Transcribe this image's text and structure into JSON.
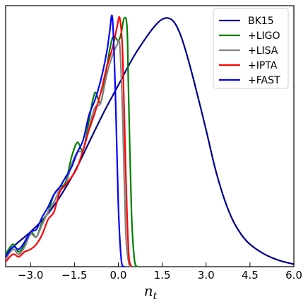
{
  "chart_data": {
    "type": "line",
    "title": "",
    "xlabel": "n",
    "xlabel_sub": "t",
    "ylabel": "",
    "xlim": [
      -3.85,
      6.0
    ],
    "ylim": [
      0,
      1.05
    ],
    "xticks": [
      -3.0,
      -1.5,
      0.0,
      1.5,
      3.0,
      4.5,
      6.0
    ],
    "xtick_labels": [
      "−3.0",
      "−1.5",
      "0.0",
      "1.5",
      "3.0",
      "4.5",
      "6.0"
    ],
    "yticks_visible": false,
    "grid": false,
    "legend_position": "top-right",
    "series": [
      {
        "name": "BK15",
        "color": "#00008b",
        "x": [
          -3.85,
          -3.5,
          -3.0,
          -2.5,
          -2.0,
          -1.5,
          -1.0,
          -0.5,
          0.0,
          0.5,
          1.0,
          1.3,
          1.5,
          1.7,
          1.9,
          2.1,
          2.3,
          2.6,
          3.0,
          3.3,
          3.6,
          3.9,
          4.2,
          4.5,
          5.0,
          5.5,
          6.0
        ],
        "y": [
          0.05,
          0.09,
          0.14,
          0.2,
          0.28,
          0.38,
          0.5,
          0.62,
          0.73,
          0.84,
          0.93,
          0.975,
          0.995,
          1.0,
          0.985,
          0.94,
          0.87,
          0.74,
          0.55,
          0.4,
          0.28,
          0.19,
          0.13,
          0.09,
          0.05,
          0.025,
          0.01
        ]
      },
      {
        "name": "+LIGO",
        "color": "#008000",
        "x": [
          -3.85,
          -3.6,
          -3.4,
          -3.2,
          -3.0,
          -2.8,
          -2.6,
          -2.4,
          -2.2,
          -2.0,
          -1.8,
          -1.6,
          -1.4,
          -1.2,
          -1.0,
          -0.8,
          -0.6,
          -0.4,
          -0.2,
          0.0,
          0.1,
          0.2,
          0.3,
          0.35,
          0.45,
          0.55,
          0.65
        ],
        "y": [
          0.05,
          0.09,
          0.06,
          0.09,
          0.14,
          0.12,
          0.18,
          0.22,
          0.29,
          0.32,
          0.34,
          0.44,
          0.5,
          0.47,
          0.59,
          0.7,
          0.66,
          0.8,
          0.92,
          0.91,
          0.94,
          1.0,
          0.96,
          0.7,
          0.22,
          0.03,
          0.0
        ]
      },
      {
        "name": "+LISA",
        "color": "#808080",
        "x": [
          -3.85,
          -3.6,
          -3.4,
          -3.2,
          -3.0,
          -2.8,
          -2.6,
          -2.4,
          -2.2,
          -2.0,
          -1.8,
          -1.6,
          -1.4,
          -1.2,
          -1.0,
          -0.8,
          -0.6,
          -0.4,
          -0.2,
          -0.05,
          0.05,
          0.15,
          0.25,
          0.35,
          0.45
        ],
        "y": [
          0.03,
          0.07,
          0.05,
          0.08,
          0.13,
          0.12,
          0.17,
          0.22,
          0.26,
          0.31,
          0.33,
          0.41,
          0.46,
          0.47,
          0.56,
          0.64,
          0.66,
          0.77,
          0.85,
          0.89,
          0.89,
          0.6,
          0.15,
          0.02,
          0.0
        ]
      },
      {
        "name": "+IPTA",
        "color": "#ff0000",
        "x": [
          -3.85,
          -3.6,
          -3.4,
          -3.2,
          -3.0,
          -2.8,
          -2.6,
          -2.4,
          -2.2,
          -2.0,
          -1.8,
          -1.6,
          -1.4,
          -1.2,
          -1.0,
          -0.8,
          -0.6,
          -0.4,
          -0.2,
          -0.05,
          0.05,
          0.15,
          0.25,
          0.35,
          0.45
        ],
        "y": [
          0.02,
          0.05,
          0.04,
          0.06,
          0.07,
          0.09,
          0.13,
          0.19,
          0.22,
          0.3,
          0.33,
          0.36,
          0.4,
          0.47,
          0.55,
          0.62,
          0.7,
          0.8,
          0.88,
          0.96,
          1.0,
          0.85,
          0.4,
          0.06,
          0.0
        ]
      },
      {
        "name": "+FAST",
        "color": "#0000ff",
        "x": [
          -3.85,
          -3.6,
          -3.4,
          -3.2,
          -3.0,
          -2.8,
          -2.6,
          -2.4,
          -2.2,
          -2.0,
          -1.8,
          -1.6,
          -1.4,
          -1.2,
          -1.0,
          -0.8,
          -0.6,
          -0.4,
          -0.3,
          -0.2,
          -0.1,
          0.0,
          0.1,
          0.2
        ],
        "y": [
          0.04,
          0.08,
          0.07,
          0.1,
          0.14,
          0.15,
          0.2,
          0.24,
          0.29,
          0.32,
          0.36,
          0.4,
          0.46,
          0.51,
          0.61,
          0.67,
          0.75,
          0.86,
          0.94,
          1.0,
          0.7,
          0.25,
          0.03,
          0.0
        ]
      }
    ]
  }
}
